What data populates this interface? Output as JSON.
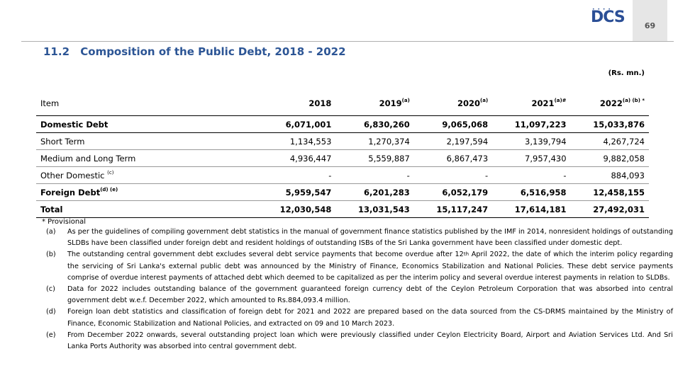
{
  "header": {
    "logo_text": "DCS",
    "page_number": "69"
  },
  "title": {
    "number": "11.2",
    "text": "Composition of the Public Debt, 2018 - 2022"
  },
  "units": "(Rs. mn.)",
  "table": {
    "columns": [
      {
        "label": "Item",
        "sup": ""
      },
      {
        "label": "2018",
        "sup": ""
      },
      {
        "label": "2019",
        "sup": "(a)"
      },
      {
        "label": "2020",
        "sup": "(a)"
      },
      {
        "label": "2021",
        "sup": "(a)#"
      },
      {
        "label": "2022",
        "sup": "(a) (b) *"
      }
    ],
    "rows": [
      {
        "item": "Domestic Debt",
        "sup": "",
        "bold": true,
        "values": [
          "6,071,001",
          "6,830,260",
          "9,065,068",
          "11,097,223",
          "15,033,876"
        ]
      },
      {
        "item": "Short Term",
        "sup": "",
        "bold": false,
        "values": [
          "1,134,553",
          "1,270,374",
          "2,197,594",
          "3,139,794",
          "4,267,724"
        ]
      },
      {
        "item": "Medium and Long Term",
        "sup": "",
        "bold": false,
        "values": [
          "4,936,447",
          "5,559,887",
          "6,867,473",
          "7,957,430",
          "9,882,058"
        ]
      },
      {
        "item": "Other Domestic ",
        "sup": "(c)",
        "bold": false,
        "values": [
          "-",
          "-",
          "-",
          "-",
          "884,093"
        ]
      },
      {
        "item": "Foreign Debt",
        "sup": "(d) (e)",
        "bold": true,
        "values": [
          "5,959,547",
          "6,201,283",
          "6,052,179",
          "6,516,958",
          "12,458,155"
        ]
      },
      {
        "item": "Total",
        "sup": "",
        "bold": true,
        "values": [
          "12,030,548",
          "13,031,543",
          "15,117,247",
          "17,614,181",
          "27,492,031"
        ]
      }
    ]
  },
  "notes": {
    "provisional": "* Provisional",
    "items": [
      {
        "label": "(a)",
        "text": "As per the guidelines of compiling government debt statistics in the manual of government finance statistics published by the IMF in 2014, nonresident holdings of outstanding SLDBs have been classified under foreign debt and resident holdings of outstanding ISBs of the Sri Lanka government have been classified under domestic dept."
      },
      {
        "label": "(b)",
        "text_before": "The outstanding central government debt excludes several debt service payments that become overdue after 12",
        "text_sup": "th",
        "text_after": " April 2022, the date of which the interim policy regarding the servicing of Sri Lanka's external public debt was announced by the Ministry of Finance, Economics Stabilization and National Policies. These debt service payments comprise of overdue interest payments of attached debt which deemed to be capitalized as per the interim policy and several overdue interest payments in relation to SLDBs."
      },
      {
        "label": "(c)",
        "text": "Data for 2022 includes outstanding balance of the government guaranteed   foreign currency debt of the Ceylon Petroleum Corporation that was absorbed into central government debt w.e.f. December 2022, which amounted to Rs.884,093.4 million."
      },
      {
        "label": "(d)",
        "text": "Foreign loan debt statistics and classification of foreign debt for 2021 and 2022 are prepared based on the data sourced from the CS-DRMS maintained by the Ministry of Finance, Economic Stabilization and National Policies, and extracted on 09 and 10 March 2023."
      },
      {
        "label": "(e)",
        "text": "From December 2022 onwards, several outstanding project loan which were previously classified under Ceylon Electricity Board, Airport and Aviation Services Ltd. And Sri Lanka Ports Authority was absorbed into central government debt."
      }
    ]
  }
}
